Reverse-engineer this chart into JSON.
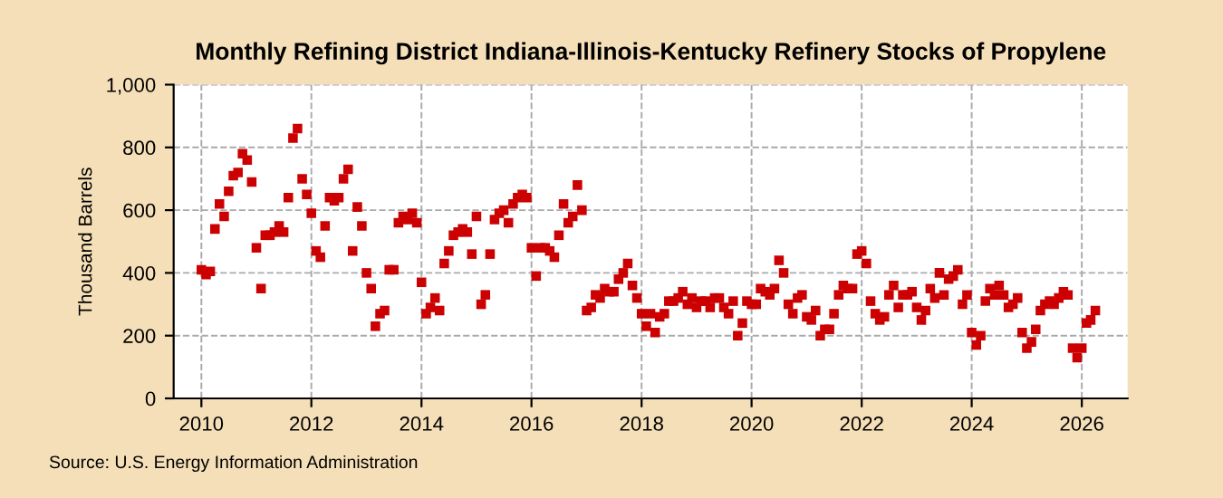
{
  "chart_data": {
    "type": "scatter",
    "title": "Monthly Refining District Indiana-Illinois-Kentucky Refinery Stocks of Propylene",
    "ylabel": "Thousand Barrels",
    "annotations": [
      "Source: U.S. Energy Information Administration"
    ],
    "series": [
      {
        "color": "#cc0000",
        "x": [
          "2010-01",
          "2010-02",
          "2010-03",
          "2010-04",
          "2010-05",
          "2010-06",
          "2010-07",
          "2010-08",
          "2010-09",
          "2010-10",
          "2010-11",
          "2010-12",
          "2011-01",
          "2011-02",
          "2011-03",
          "2011-04",
          "2011-05",
          "2011-06",
          "2011-07",
          "2011-08",
          "2011-09",
          "2011-10",
          "2011-11",
          "2011-12",
          "2012-01",
          "2012-02",
          "2012-03",
          "2012-04",
          "2012-05",
          "2012-06",
          "2012-07",
          "2012-08",
          "2012-09",
          "2012-10",
          "2012-11",
          "2012-12",
          "2013-01",
          "2013-02",
          "2013-03",
          "2013-04",
          "2013-05",
          "2013-06",
          "2013-07",
          "2013-08",
          "2013-09",
          "2013-10",
          "2013-11",
          "2013-12",
          "2014-01",
          "2014-02",
          "2014-03",
          "2014-04",
          "2014-05",
          "2014-06",
          "2014-07",
          "2014-08",
          "2014-09",
          "2014-10",
          "2014-11",
          "2014-12",
          "2015-01",
          "2015-02",
          "2015-03",
          "2015-04",
          "2015-05",
          "2015-06",
          "2015-07",
          "2015-08",
          "2015-09",
          "2015-10",
          "2015-11",
          "2015-12",
          "2016-01",
          "2016-02",
          "2016-03",
          "2016-04",
          "2016-05",
          "2016-06",
          "2016-07",
          "2016-08",
          "2016-09",
          "2016-10",
          "2016-11",
          "2016-12",
          "2017-01",
          "2017-02",
          "2017-03",
          "2017-04",
          "2017-05",
          "2017-06",
          "2017-07",
          "2017-08",
          "2017-09",
          "2017-10",
          "2017-11",
          "2017-12",
          "2018-01",
          "2018-02",
          "2018-03",
          "2018-04",
          "2018-05",
          "2018-06",
          "2018-07",
          "2018-08",
          "2018-09",
          "2018-10",
          "2018-11",
          "2018-12",
          "2019-01",
          "2019-02",
          "2019-03",
          "2019-04",
          "2019-05",
          "2019-06",
          "2019-07",
          "2019-08",
          "2019-09",
          "2019-10",
          "2019-11",
          "2019-12",
          "2020-01",
          "2020-02",
          "2020-03",
          "2020-04",
          "2020-05",
          "2020-06",
          "2020-07",
          "2020-08",
          "2020-09",
          "2020-10",
          "2020-11",
          "2020-12",
          "2021-01",
          "2021-02",
          "2021-03",
          "2021-04",
          "2021-05",
          "2021-06",
          "2021-07",
          "2021-08",
          "2021-09",
          "2021-10",
          "2021-11",
          "2021-12",
          "2022-01",
          "2022-02",
          "2022-03",
          "2022-04",
          "2022-05",
          "2022-06",
          "2022-07",
          "2022-08",
          "2022-09",
          "2022-10",
          "2022-11",
          "2022-12",
          "2023-01",
          "2023-02",
          "2023-03",
          "2023-04",
          "2023-05",
          "2023-06",
          "2023-07",
          "2023-08",
          "2023-09",
          "2023-10",
          "2023-11",
          "2023-12",
          "2024-01",
          "2024-02",
          "2024-03",
          "2024-04",
          "2024-05",
          "2024-06",
          "2024-07",
          "2024-08",
          "2024-09",
          "2024-10",
          "2024-11",
          "2024-12",
          "2025-01",
          "2025-02",
          "2025-03",
          "2025-04",
          "2025-05",
          "2025-06",
          "2025-07",
          "2025-08",
          "2025-09",
          "2025-10",
          "2025-11",
          "2025-12",
          "2026-01",
          "2026-02",
          "2026-03",
          "2026-04"
        ],
        "values": [
          410,
          395,
          405,
          540,
          620,
          580,
          660,
          710,
          720,
          780,
          760,
          690,
          480,
          350,
          520,
          520,
          530,
          550,
          530,
          640,
          830,
          860,
          700,
          650,
          590,
          470,
          450,
          550,
          640,
          630,
          640,
          700,
          730,
          470,
          610,
          550,
          400,
          350,
          230,
          270,
          280,
          410,
          410,
          560,
          580,
          570,
          590,
          560,
          370,
          270,
          290,
          320,
          280,
          430,
          470,
          520,
          530,
          540,
          530,
          460,
          580,
          300,
          330,
          460,
          570,
          590,
          600,
          560,
          620,
          640,
          650,
          640,
          480,
          390,
          480,
          480,
          470,
          450,
          520,
          620,
          560,
          580,
          680,
          600,
          280,
          290,
          330,
          320,
          350,
          340,
          340,
          380,
          400,
          430,
          360,
          320,
          270,
          230,
          270,
          210,
          260,
          270,
          310,
          310,
          320,
          340,
          300,
          320,
          290,
          310,
          310,
          290,
          320,
          320,
          290,
          270,
          310,
          200,
          240,
          310,
          300,
          300,
          350,
          340,
          330,
          350,
          440,
          400,
          300,
          270,
          320,
          330,
          260,
          250,
          280,
          200,
          220,
          220,
          270,
          330,
          360,
          350,
          350,
          460,
          470,
          430,
          310,
          270,
          250,
          260,
          330,
          360,
          290,
          330,
          330,
          340,
          290,
          250,
          280,
          350,
          320,
          400,
          330,
          380,
          390,
          410,
          300,
          330,
          210,
          170,
          200,
          310,
          350,
          330,
          360,
          330,
          290,
          300,
          320,
          210,
          160,
          180,
          220,
          280,
          300,
          310,
          300,
          320,
          340,
          330,
          160,
          130,
          160,
          240,
          250,
          280
        ]
      }
    ],
    "marker": "square",
    "xlim": [
      "2009-07",
      "2026-11"
    ],
    "xticks": [
      {
        "value": "2010",
        "label": "2010"
      },
      {
        "value": "2012",
        "label": "2012"
      },
      {
        "value": "2014",
        "label": "2014"
      },
      {
        "value": "2016",
        "label": "2016"
      },
      {
        "value": "2018",
        "label": "2018"
      },
      {
        "value": "2020",
        "label": "2020"
      },
      {
        "value": "2022",
        "label": "2022"
      },
      {
        "value": "2024",
        "label": "2024"
      },
      {
        "value": "2026",
        "label": "2026"
      }
    ],
    "ylim": [
      0,
      1000
    ],
    "yticks": [
      0,
      200,
      400,
      600,
      800,
      {
        "value": 1000,
        "label": "1,000"
      }
    ],
    "grid": true
  }
}
